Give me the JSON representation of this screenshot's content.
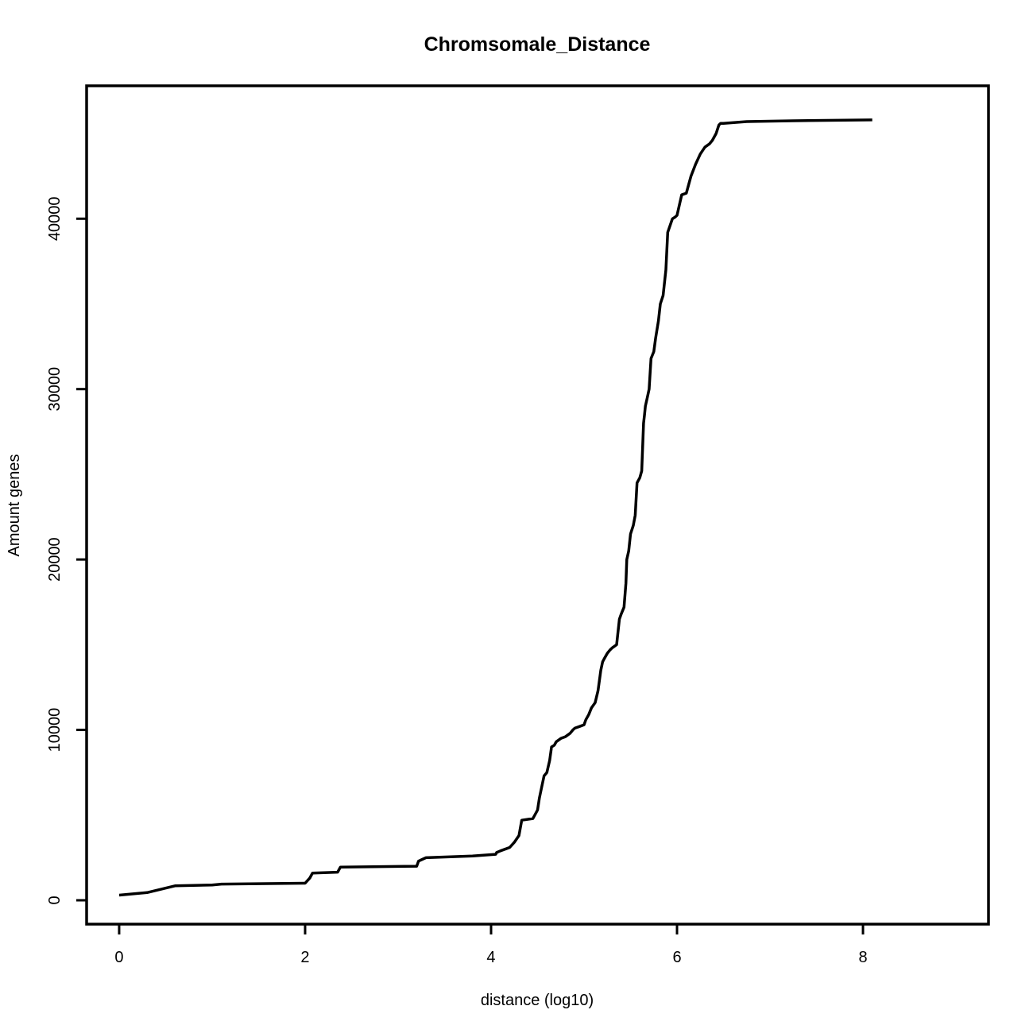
{
  "chart_data": {
    "type": "line",
    "title": "Chromsomale_Distance",
    "xlabel": "distance (log10)",
    "ylabel": "Amount genes",
    "xlim": [
      -0.35,
      9.35
    ],
    "ylim": [
      -1400,
      47800
    ],
    "x_ticks": [
      "0",
      "2",
      "4",
      "6",
      "8"
    ],
    "y_ticks": [
      "0",
      "10000",
      "20000",
      "30000",
      "40000"
    ],
    "grid": false,
    "legend": "none",
    "line_color": "#000000",
    "series": [
      {
        "x": [
          0.0,
          0.3,
          0.6,
          1.0,
          1.1,
          2.0,
          2.05,
          2.08,
          2.35,
          2.38,
          3.2,
          3.22,
          3.26,
          3.3,
          3.8,
          4.05,
          4.06,
          4.1,
          4.15,
          4.2,
          4.25,
          4.3,
          4.33,
          4.45,
          4.47,
          4.5,
          4.52,
          4.55,
          4.57,
          4.6,
          4.63,
          4.65,
          4.68,
          4.7,
          4.75,
          4.8,
          4.85,
          4.88,
          4.9,
          4.95,
          5.0,
          5.02,
          5.05,
          5.08,
          5.12,
          5.15,
          5.18,
          5.2,
          5.22,
          5.25,
          5.28,
          5.3,
          5.35,
          5.38,
          5.4,
          5.43,
          5.45,
          5.46,
          5.48,
          5.5,
          5.53,
          5.55,
          5.57,
          5.6,
          5.62,
          5.64,
          5.65,
          5.66,
          5.68,
          5.7,
          5.72,
          5.75,
          5.77,
          5.8,
          5.82,
          5.85,
          5.88,
          5.9,
          5.95,
          5.98,
          6.0,
          6.05,
          6.1,
          6.15,
          6.2,
          6.25,
          6.3,
          6.35,
          6.38,
          6.42,
          6.45,
          6.47,
          6.5,
          6.75,
          7.25,
          8.1
        ],
        "y": [
          300,
          450,
          850,
          900,
          950,
          1000,
          1300,
          1600,
          1650,
          1950,
          2000,
          2300,
          2400,
          2500,
          2600,
          2700,
          2800,
          2900,
          3000,
          3100,
          3400,
          3800,
          4700,
          4800,
          5000,
          5300,
          6000,
          6800,
          7300,
          7500,
          8200,
          9000,
          9100,
          9300,
          9500,
          9600,
          9800,
          10000,
          10100,
          10200,
          10300,
          10600,
          10900,
          11300,
          11600,
          12300,
          13500,
          14000,
          14200,
          14500,
          14700,
          14800,
          15000,
          16500,
          16800,
          17200,
          18600,
          20000,
          20500,
          21500,
          22000,
          22600,
          24500,
          24800,
          25200,
          28000,
          28500,
          29000,
          29500,
          30000,
          31800,
          32200,
          33000,
          34000,
          35000,
          35500,
          37000,
          39200,
          40000,
          40100,
          40200,
          41400,
          41500,
          42500,
          43200,
          43800,
          44200,
          44400,
          44600,
          45000,
          45500,
          45600,
          45600,
          45700,
          45750,
          45800
        ]
      }
    ]
  }
}
